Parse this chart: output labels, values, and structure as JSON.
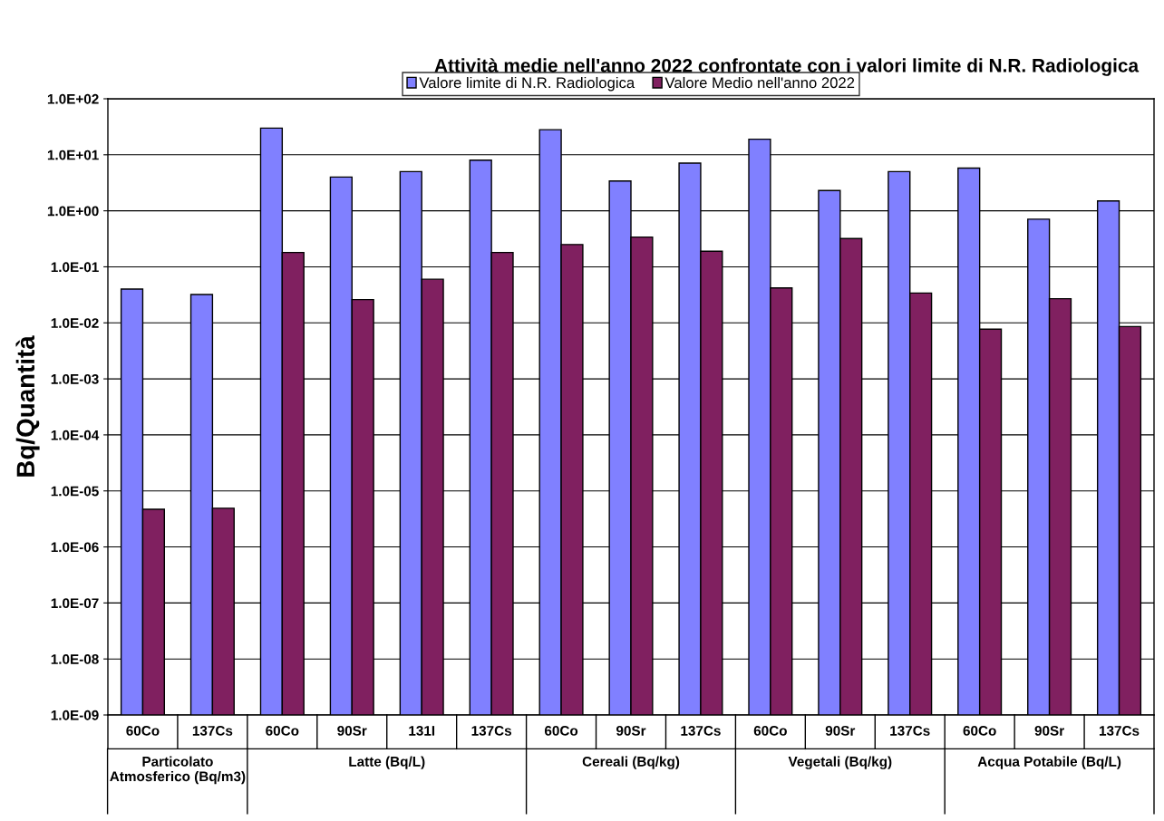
{
  "chart_data": {
    "type": "bar",
    "title": "Attività medie nell'anno 2022 confrontate con i valori limite di N.R. Radiologica",
    "ylabel": "Bq/Quantità",
    "categories": [
      "60Co",
      "137Cs",
      "60Co",
      "90Sr",
      "131I",
      "137Cs",
      "60Co",
      "90Sr",
      "137Cs",
      "60Co",
      "90Sr",
      "137Cs",
      "60Co",
      "90Sr",
      "137Cs"
    ],
    "series": [
      {
        "name": "Valore limite di N.R. Radiologica",
        "color": "#8080ff",
        "values": [
          0.04,
          0.032,
          30,
          4,
          5,
          8,
          28,
          3.4,
          7.1,
          19,
          2.3,
          5,
          5.8,
          0.71,
          1.5
        ]
      },
      {
        "name": "Valore Medio nell'anno 2022",
        "color": "#802060",
        "values": [
          4.7e-06,
          4.9e-06,
          0.18,
          0.026,
          0.06,
          0.18,
          0.25,
          0.34,
          0.19,
          0.042,
          0.32,
          0.034,
          0.0077,
          0.027,
          0.0086
        ]
      }
    ],
    "annotations": [
      "Particolato Atmosferico (Bq/m3)",
      "Latte (Bq/L)",
      "Cereali (Bq/kg)",
      "Vegetali (Bq/kg)",
      "Acqua Potabile (Bq/L)"
    ],
    "log": "y",
    "ylim": [
      1e-09,
      100
    ],
    "yticks": [
      {
        "value": 1e-09,
        "label": "1.0E-09"
      },
      {
        "value": 1e-08,
        "label": "1.0E-08"
      },
      {
        "value": 1e-07,
        "label": "1.0E-07"
      },
      {
        "value": 1e-06,
        "label": "1.0E-06"
      },
      {
        "value": 1e-05,
        "label": "1.0E-05"
      },
      {
        "value": 0.0001,
        "label": "1.0E-04"
      },
      {
        "value": 0.001,
        "label": "1.0E-03"
      },
      {
        "value": 0.01,
        "label": "1.0E-02"
      },
      {
        "value": 0.1,
        "label": "1.0E-01"
      },
      {
        "value": 1,
        "label": "1.0E+00"
      },
      {
        "value": 10,
        "label": "1.0E+01"
      },
      {
        "value": 100,
        "label": "1.0E+02"
      }
    ],
    "grid": "y",
    "legend": "top"
  }
}
